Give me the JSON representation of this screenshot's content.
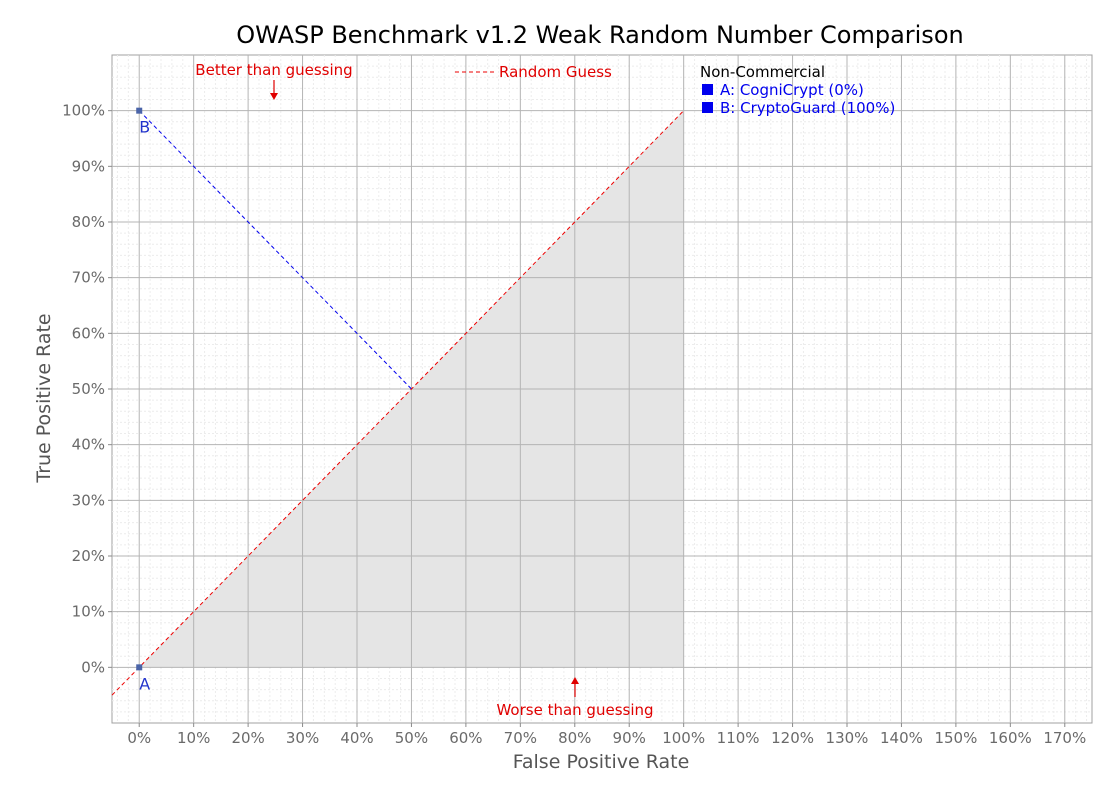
{
  "chart_data": {
    "type": "scatter",
    "title": "OWASP Benchmark v1.2 Weak Random Number Comparison",
    "xlabel": "False Positive Rate",
    "ylabel": "True Positive Rate",
    "xlim": [
      -5,
      175
    ],
    "ylim": [
      -10,
      110
    ],
    "x_ticks": [
      "0%",
      "10%",
      "20%",
      "30%",
      "40%",
      "50%",
      "60%",
      "70%",
      "80%",
      "90%",
      "100%",
      "110%",
      "120%",
      "130%",
      "140%",
      "150%",
      "160%",
      "170%"
    ],
    "y_ticks": [
      "0%",
      "10%",
      "20%",
      "30%",
      "40%",
      "50%",
      "60%",
      "70%",
      "80%",
      "90%",
      "100%"
    ],
    "grid": true,
    "points": [
      {
        "label": "A",
        "x": 0,
        "y": 0
      },
      {
        "label": "B",
        "x": 0,
        "y": 100
      }
    ],
    "random_guess_line": {
      "label": "Random Guess",
      "from": [
        -5,
        -5
      ],
      "to": [
        100,
        100
      ]
    },
    "projection_line": {
      "from": [
        0,
        100
      ],
      "to": [
        50,
        50
      ]
    },
    "shaded_region": [
      [
        0,
        0
      ],
      [
        100,
        100
      ],
      [
        100,
        0
      ]
    ],
    "annotations": {
      "better": "Better than guessing",
      "worse": "Worse than guessing"
    },
    "legend": {
      "placement": "right",
      "group": "Non-Commercial",
      "entries": [
        "A: CogniCrypt (0%)",
        "B: CryptoGuard (100%)"
      ]
    },
    "colors": {
      "random_guess": "#ee0000",
      "projection": "#0000ee",
      "points": "#4a64a8",
      "shade": "#e5e5e5",
      "legend_text": "#0000ee",
      "annotation": "#e00000"
    }
  }
}
